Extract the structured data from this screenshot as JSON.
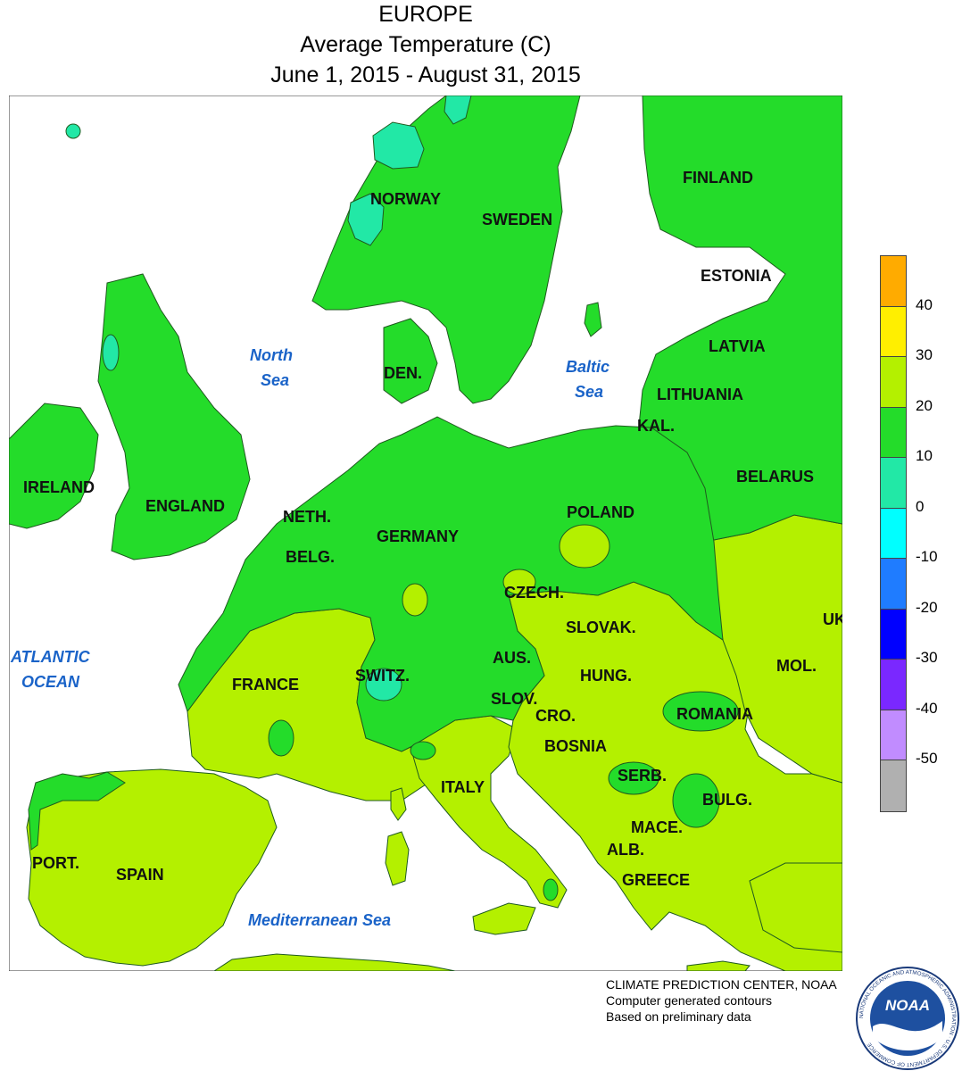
{
  "header": {
    "region": "EUROPE",
    "variable": "Average Temperature (C)",
    "period": "June 1, 2015 - August 31, 2015"
  },
  "legend": {
    "bands": [
      {
        "color": "#ffab00"
      },
      {
        "color": "#ffef00"
      },
      {
        "color": "#b4f000"
      },
      {
        "color": "#24dc2a"
      },
      {
        "color": "#22e8a6"
      },
      {
        "color": "#00ffff"
      },
      {
        "color": "#1f7cff"
      },
      {
        "color": "#0000ff"
      },
      {
        "color": "#7a28ff"
      },
      {
        "color": "#c18cff"
      },
      {
        "color": "#b0b0b0"
      }
    ],
    "ticks": [
      "40",
      "30",
      "20",
      "10",
      "0",
      "-10",
      "-20",
      "-30",
      "-40",
      "-50"
    ]
  },
  "map": {
    "countries": {
      "finland": "FINLAND",
      "norway": "NORWAY",
      "sweden": "SWEDEN",
      "estonia": "ESTONIA",
      "latvia": "LATVIA",
      "lithuania": "LITHUANIA",
      "kal": "KAL.",
      "den": "DEN.",
      "belarus": "BELARUS",
      "ireland": "IRELAND",
      "england": "ENGLAND",
      "neth": "NETH.",
      "belg": "BELG.",
      "germany": "GERMANY",
      "poland": "POLAND",
      "czech": "CZECH.",
      "slovak": "SLOVAK.",
      "uk": "UK",
      "mol": "MOL.",
      "aus": "AUS.",
      "switz": "SWITZ.",
      "hung": "HUNG.",
      "france": "FRANCE",
      "slov": "SLOV.",
      "cro": "CRO.",
      "romania": "ROMANIA",
      "bosnia": "BOSNIA",
      "serb": "SERB.",
      "italy": "ITALY",
      "bulg": "BULG.",
      "mace": "MACE.",
      "alb": "ALB.",
      "port": "PORT.",
      "spain": "SPAIN",
      "greece": "GREECE"
    },
    "seas": {
      "north_1": "North",
      "north_2": "Sea",
      "baltic_1": "Baltic",
      "baltic_2": "Sea",
      "atlantic_1": "ATLANTIC",
      "atlantic_2": "OCEAN",
      "med": "Mediterranean Sea"
    },
    "colors": {
      "water": "#ffffff",
      "warm_20_30": "#b4f000",
      "mild_10_20": "#24dc2a",
      "cool_0_10": "#22e8a6"
    }
  },
  "credits": {
    "line1": "CLIMATE PREDICTION CENTER, NOAA",
    "line2": "Computer generated contours",
    "line3": "Based on preliminary data"
  },
  "logo": {
    "text": "NOAA",
    "ring_text": "NATIONAL OCEANIC AND ATMOSPHERIC ADMINISTRATION · U.S. DEPARTMENT OF COMMERCE"
  }
}
